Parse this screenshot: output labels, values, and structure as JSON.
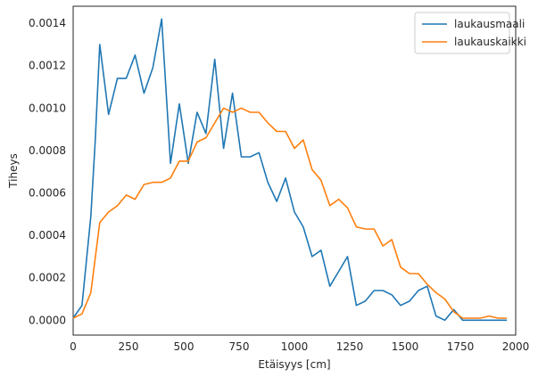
{
  "chart_data": {
    "type": "line",
    "xlabel": "Etäisyys [cm]",
    "ylabel": "Tiheys",
    "xlim": [
      0,
      2000
    ],
    "ylim": [
      -7e-05,
      0.00148
    ],
    "xticks": [
      0,
      250,
      500,
      750,
      1000,
      1250,
      1500,
      1750,
      2000
    ],
    "xtick_labels": [
      "0",
      "250",
      "500",
      "750",
      "1000",
      "1250",
      "1500",
      "1750",
      "2000"
    ],
    "yticks": [
      0,
      0.0002,
      0.0004,
      0.0006,
      0.0008,
      0.001,
      0.0012,
      0.0014
    ],
    "ytick_labels": [
      "0.0000",
      "0.0002",
      "0.0004",
      "0.0006",
      "0.0008",
      "0.0010",
      "0.0012",
      "0.0014"
    ],
    "grid": false,
    "legend_position": "top-right",
    "series": [
      {
        "name": "laukausmaali",
        "color": "#1f77b4",
        "x": [
          0,
          40,
          80,
          100,
          120,
          160,
          200,
          240,
          280,
          320,
          360,
          400,
          440,
          480,
          520,
          560,
          600,
          640,
          680,
          720,
          760,
          800,
          840,
          880,
          920,
          960,
          1000,
          1040,
          1080,
          1120,
          1160,
          1200,
          1240,
          1280,
          1320,
          1360,
          1400,
          1440,
          1480,
          1520,
          1560,
          1600,
          1640,
          1680,
          1720,
          1760,
          1800,
          1840,
          1880,
          1920,
          1960
        ],
        "y": [
          1e-05,
          7e-05,
          0.00049,
          0.00085,
          0.0013,
          0.00097,
          0.00114,
          0.00114,
          0.00125,
          0.00107,
          0.00119,
          0.00142,
          0.00074,
          0.00102,
          0.00074,
          0.00098,
          0.00088,
          0.00123,
          0.00081,
          0.00107,
          0.00077,
          0.00077,
          0.00079,
          0.00065,
          0.00056,
          0.00067,
          0.00051,
          0.00044,
          0.0003,
          0.00033,
          0.00016,
          0.00023,
          0.0003,
          7e-05,
          9e-05,
          0.00014,
          0.00014,
          0.00012,
          7e-05,
          9e-05,
          0.00014,
          0.00016,
          2e-05,
          0.0,
          5e-05,
          0.0,
          0.0,
          0.0,
          0.0,
          0.0,
          0.0
        ]
      },
      {
        "name": "laukauskaikki",
        "color": "#ff7f0e",
        "x": [
          0,
          40,
          80,
          120,
          160,
          200,
          240,
          280,
          320,
          360,
          400,
          440,
          480,
          520,
          560,
          600,
          640,
          680,
          720,
          760,
          800,
          840,
          880,
          920,
          960,
          1000,
          1040,
          1080,
          1120,
          1160,
          1200,
          1240,
          1280,
          1320,
          1360,
          1400,
          1440,
          1480,
          1520,
          1560,
          1600,
          1640,
          1680,
          1720,
          1760,
          1800,
          1840,
          1880,
          1920,
          1960
        ],
        "y": [
          1e-05,
          3e-05,
          0.00013,
          0.00046,
          0.00051,
          0.00054,
          0.00059,
          0.00057,
          0.00064,
          0.00065,
          0.00065,
          0.00067,
          0.00075,
          0.00075,
          0.00084,
          0.00086,
          0.00093,
          0.001,
          0.00098,
          0.001,
          0.00098,
          0.00098,
          0.00093,
          0.00089,
          0.00089,
          0.00081,
          0.00085,
          0.00071,
          0.00066,
          0.00054,
          0.00057,
          0.00053,
          0.00044,
          0.00043,
          0.00043,
          0.00035,
          0.00038,
          0.00025,
          0.00022,
          0.00022,
          0.00017,
          0.00013,
          0.0001,
          4e-05,
          1e-05,
          1e-05,
          1e-05,
          2e-05,
          1e-05,
          1e-05
        ]
      }
    ]
  }
}
